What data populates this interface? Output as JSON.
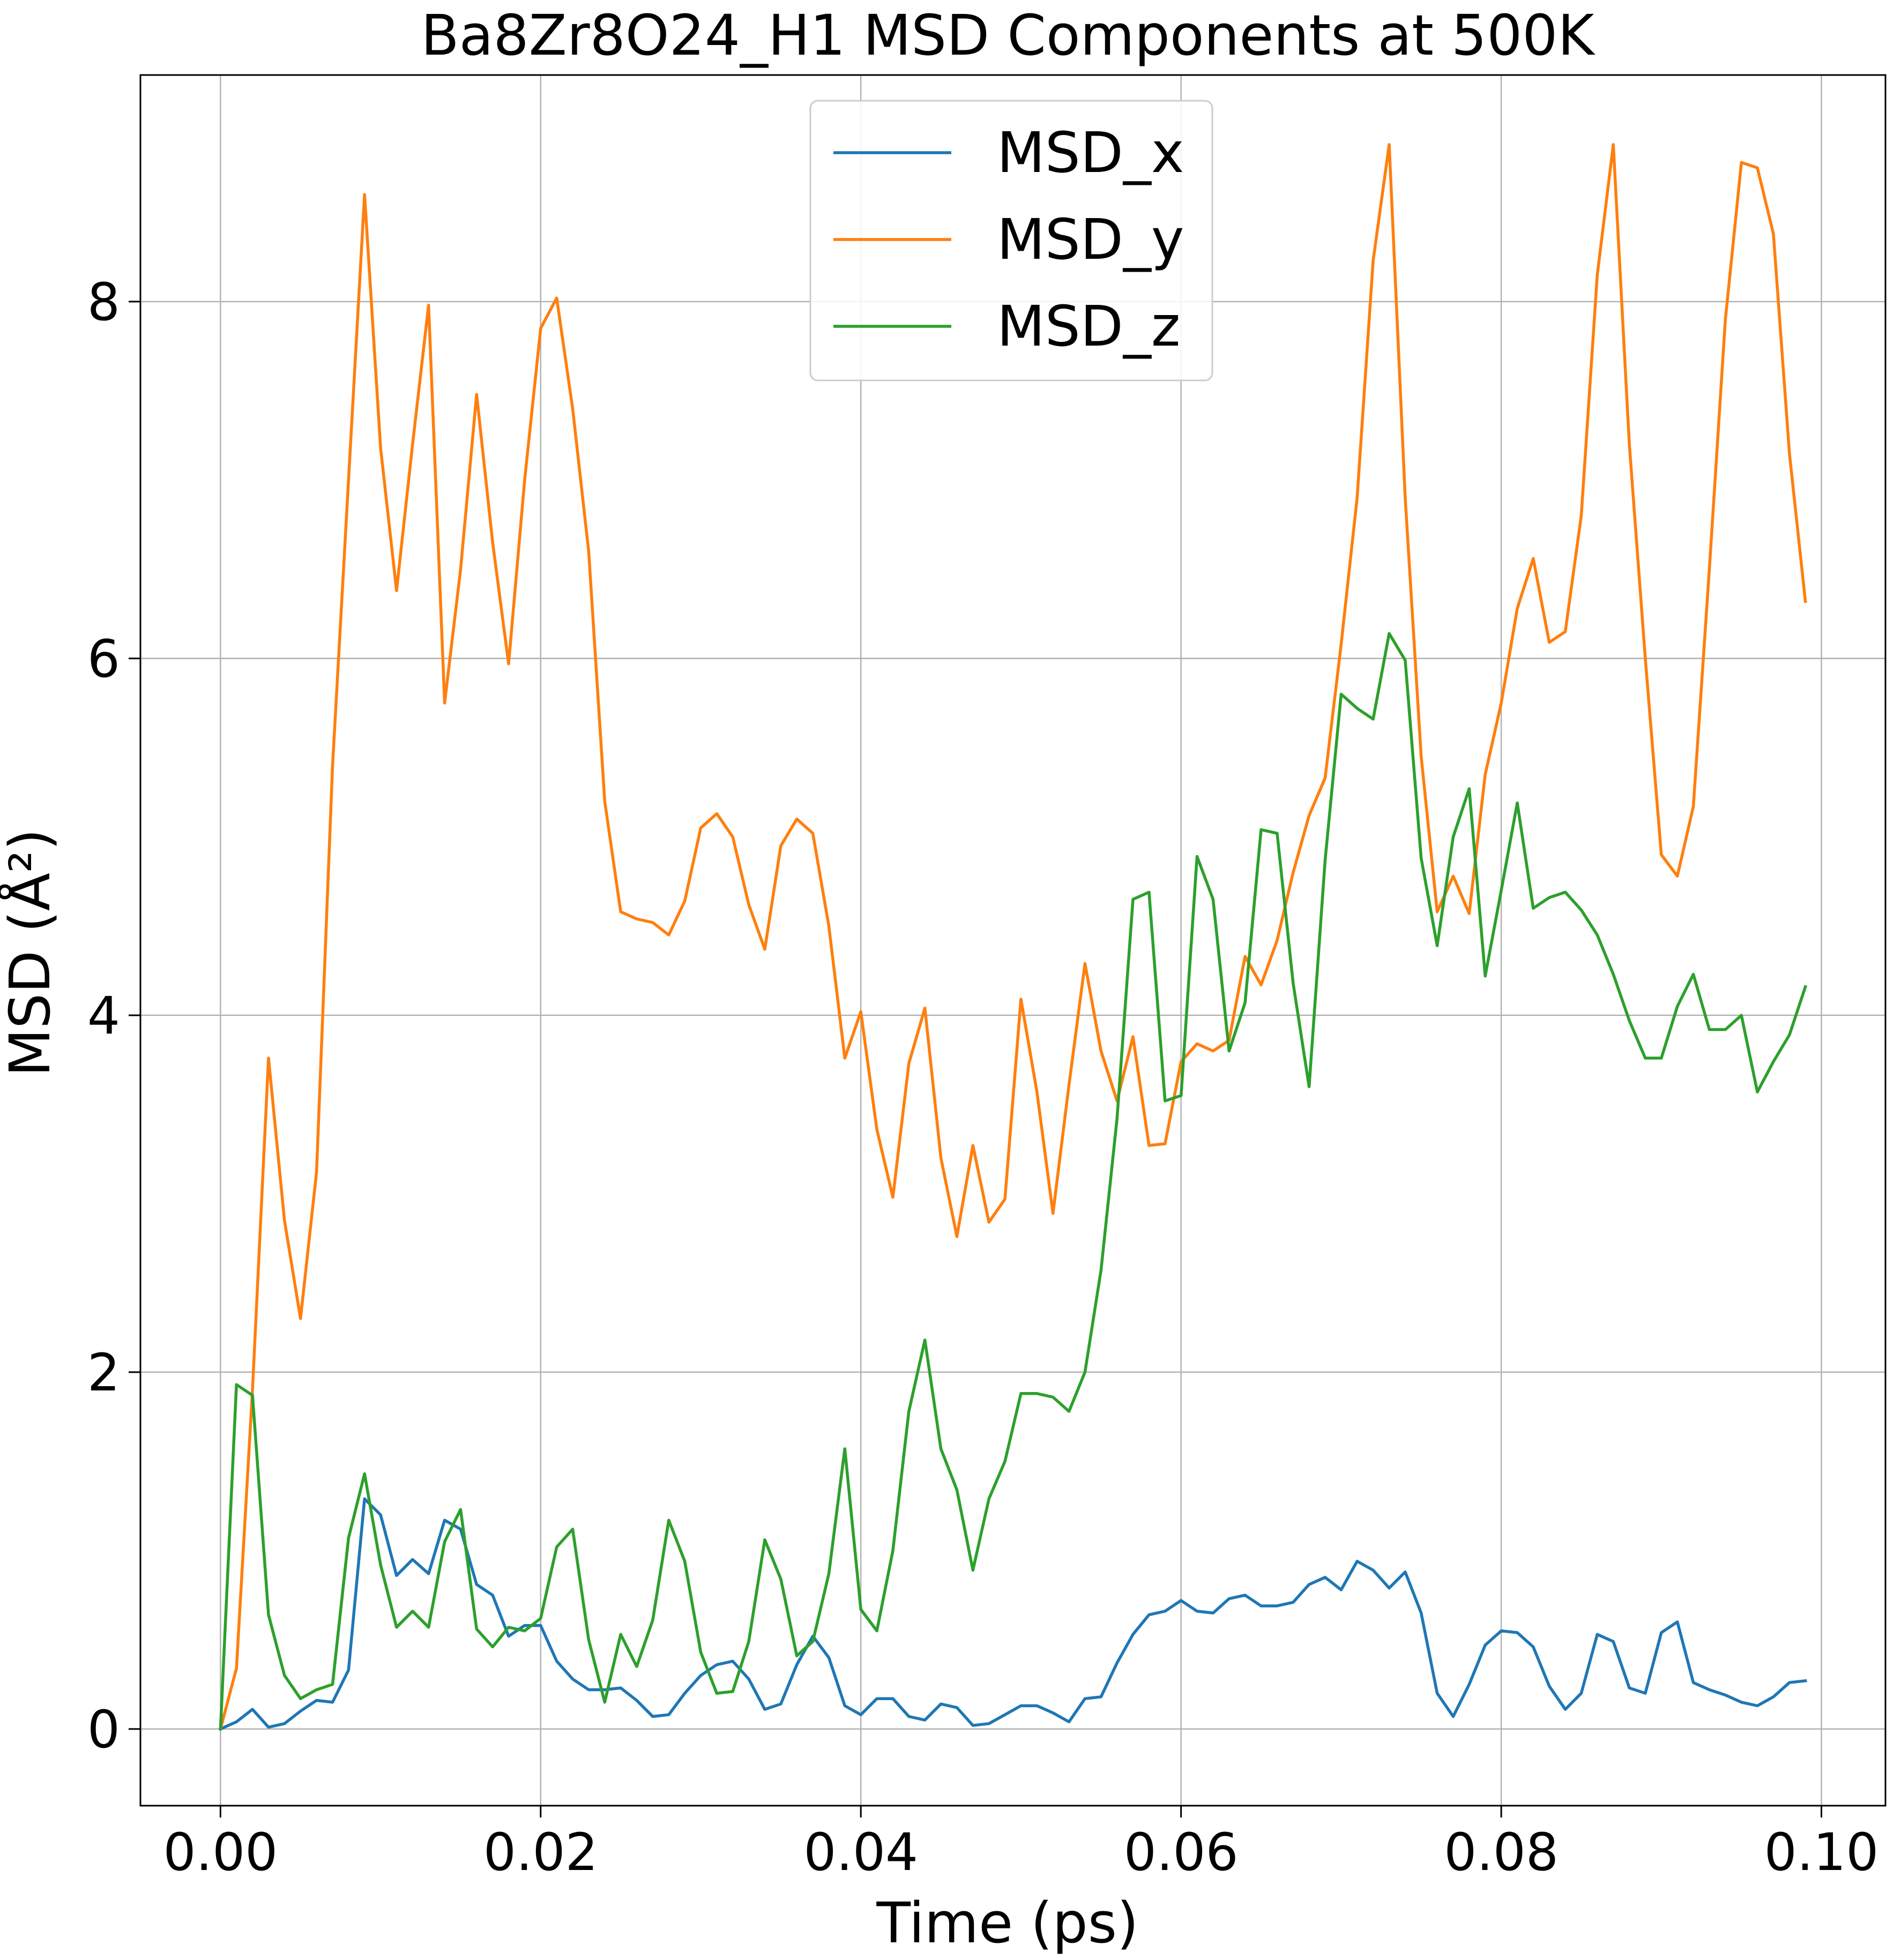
{
  "chart_data": {
    "type": "line",
    "title": "Ba8Zr8O24_H1 MSD Components at 500K",
    "xlabel": "Time (ps)",
    "ylabel": "MSD (Å²)",
    "xlim": [
      -0.005,
      0.104
    ],
    "ylim": [
      -0.43,
      9.27
    ],
    "xticks": [
      0.0,
      0.02,
      0.04,
      0.06,
      0.08,
      0.1
    ],
    "xtick_labels": [
      "0.00",
      "0.02",
      "0.04",
      "0.06",
      "0.08",
      "0.10"
    ],
    "yticks": [
      0,
      2,
      4,
      6,
      8
    ],
    "ytick_labels": [
      "0",
      "2",
      "4",
      "6",
      "8"
    ],
    "grid": true,
    "legend_position": "top-center",
    "x_start": 0.0,
    "x_step": 0.001,
    "series": [
      {
        "name": "MSD_x",
        "color": "#1f77b4",
        "values": [
          0.0,
          0.04,
          0.11,
          0.01,
          0.03,
          0.1,
          0.16,
          0.15,
          0.33,
          1.29,
          1.2,
          0.86,
          0.95,
          0.87,
          1.17,
          1.12,
          0.81,
          0.75,
          0.52,
          0.58,
          0.58,
          0.38,
          0.28,
          0.22,
          0.22,
          0.23,
          0.16,
          0.07,
          0.08,
          0.2,
          0.3,
          0.36,
          0.38,
          0.28,
          0.11,
          0.14,
          0.36,
          0.52,
          0.4,
          0.13,
          0.08,
          0.17,
          0.17,
          0.07,
          0.05,
          0.14,
          0.12,
          0.02,
          0.03,
          0.08,
          0.13,
          0.13,
          0.09,
          0.04,
          0.17,
          0.18,
          0.37,
          0.53,
          0.64,
          0.66,
          0.72,
          0.66,
          0.65,
          0.73,
          0.75,
          0.69,
          0.69,
          0.71,
          0.81,
          0.85,
          0.78,
          0.94,
          0.89,
          0.79,
          0.88,
          0.65,
          0.2,
          0.07,
          0.25,
          0.47,
          0.55,
          0.54,
          0.46,
          0.24,
          0.11,
          0.2,
          0.53,
          0.49,
          0.23,
          0.2,
          0.54,
          0.6,
          0.26,
          0.22,
          0.19,
          0.15,
          0.13,
          0.18,
          0.26,
          0.27
        ]
      },
      {
        "name": "MSD_y",
        "color": "#ff7f0e",
        "values": [
          0.0,
          0.34,
          1.9,
          3.76,
          2.85,
          2.3,
          3.12,
          5.4,
          7.0,
          8.6,
          7.18,
          6.38,
          7.2,
          7.98,
          5.75,
          6.5,
          7.48,
          6.65,
          5.97,
          7.0,
          7.85,
          8.02,
          7.4,
          6.6,
          5.2,
          4.58,
          4.54,
          4.52,
          4.45,
          4.64,
          5.05,
          5.13,
          5.0,
          4.62,
          4.37,
          4.95,
          5.1,
          5.02,
          4.5,
          3.76,
          4.02,
          3.36,
          2.98,
          3.73,
          4.04,
          3.2,
          2.76,
          3.27,
          2.84,
          2.97,
          4.09,
          3.57,
          2.89,
          3.61,
          4.29,
          3.8,
          3.52,
          3.88,
          3.27,
          3.28,
          3.74,
          3.84,
          3.8,
          3.86,
          4.33,
          4.17,
          4.42,
          4.8,
          5.12,
          5.33,
          6.08,
          6.9,
          8.23,
          8.88,
          6.9,
          5.45,
          4.58,
          4.78,
          4.57,
          5.35,
          5.75,
          6.28,
          6.56,
          6.09,
          6.15,
          6.8,
          8.15,
          8.88,
          7.2,
          6.0,
          4.9,
          4.78,
          5.17,
          6.5,
          7.9,
          8.78,
          8.75,
          8.38,
          7.15,
          6.32
        ]
      },
      {
        "name": "MSD_z",
        "color": "#2ca02c",
        "values": [
          0.0,
          1.93,
          1.87,
          0.64,
          0.3,
          0.17,
          0.22,
          0.25,
          1.07,
          1.43,
          0.92,
          0.57,
          0.66,
          0.57,
          1.05,
          1.23,
          0.56,
          0.46,
          0.57,
          0.55,
          0.62,
          1.02,
          1.12,
          0.5,
          0.15,
          0.53,
          0.35,
          0.61,
          1.17,
          0.94,
          0.43,
          0.2,
          0.21,
          0.49,
          1.06,
          0.84,
          0.41,
          0.49,
          0.87,
          1.57,
          0.67,
          0.55,
          1.0,
          1.78,
          2.18,
          1.57,
          1.34,
          0.89,
          1.29,
          1.5,
          1.88,
          1.88,
          1.86,
          1.78,
          2.0,
          2.57,
          3.42,
          4.65,
          4.69,
          3.52,
          3.55,
          4.89,
          4.65,
          3.8,
          4.07,
          5.04,
          5.02,
          4.18,
          3.6,
          4.87,
          5.8,
          5.72,
          5.66,
          6.14,
          5.99,
          4.88,
          4.39,
          5.0,
          5.27,
          4.22,
          4.7,
          5.19,
          4.6,
          4.66,
          4.69,
          4.59,
          4.45,
          4.23,
          3.97,
          3.76,
          3.76,
          4.05,
          4.23,
          3.92,
          3.92,
          4.0,
          3.57,
          3.74,
          3.89,
          4.16
        ]
      }
    ]
  }
}
